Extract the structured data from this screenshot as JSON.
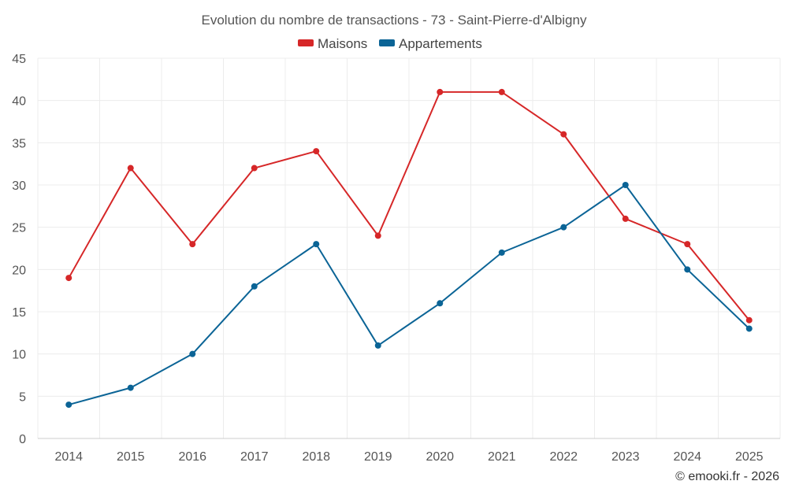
{
  "chart_data": {
    "type": "line",
    "title": "Evolution du nombre de transactions - 73 - Saint-Pierre-d'Albigny",
    "categories": [
      "2014",
      "2015",
      "2016",
      "2017",
      "2018",
      "2019",
      "2020",
      "2021",
      "2022",
      "2023",
      "2024",
      "2025"
    ],
    "series": [
      {
        "name": "Maisons",
        "color": "#d62728",
        "values": [
          19,
          32,
          23,
          32,
          34,
          24,
          41,
          41,
          36,
          26,
          23,
          14
        ]
      },
      {
        "name": "Appartements",
        "color": "#0b6496",
        "values": [
          4,
          6,
          10,
          18,
          23,
          11,
          16,
          22,
          25,
          30,
          20,
          13
        ]
      }
    ],
    "ylim": [
      0,
      45
    ],
    "yticks": [
      "0",
      "5",
      "10",
      "15",
      "20",
      "25",
      "30",
      "35",
      "40",
      "45"
    ],
    "grid": true,
    "legend": "top-center",
    "xlabel": "",
    "ylabel": ""
  },
  "credit": "© emooki.fr - 2026"
}
